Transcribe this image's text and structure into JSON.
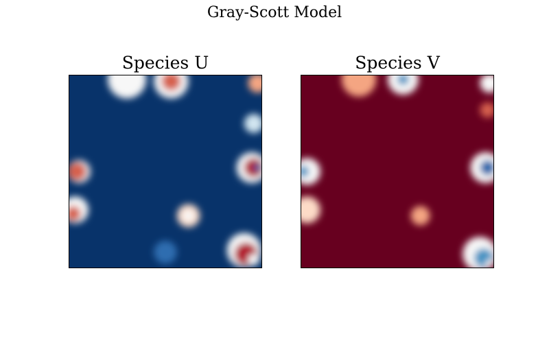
{
  "figure": {
    "title": "Gray-Scott Model"
  },
  "chart_data": [
    {
      "type": "heatmap",
      "title": "Species U",
      "colormap": "RdBu",
      "background_color": "#08336a",
      "axes": {
        "ticks": "none",
        "grid": false
      },
      "features": [
        {
          "x": 0.3,
          "y": 0.02,
          "r": 0.1,
          "color": "#f7f7f7"
        },
        {
          "x": 0.53,
          "y": 0.03,
          "r": 0.09,
          "color": "#f7f7f7"
        },
        {
          "x": 0.53,
          "y": 0.03,
          "r": 0.05,
          "color": "#d6604d"
        },
        {
          "x": 0.98,
          "y": 0.04,
          "r": 0.05,
          "color": "#f4a582"
        },
        {
          "x": 0.96,
          "y": 0.25,
          "r": 0.05,
          "color": "#d1e5f0"
        },
        {
          "x": 0.05,
          "y": 0.5,
          "r": 0.06,
          "color": "#f7f7f7"
        },
        {
          "x": 0.04,
          "y": 0.5,
          "r": 0.05,
          "color": "#d6604d"
        },
        {
          "x": 0.03,
          "y": 0.7,
          "r": 0.07,
          "color": "#f7f7f7"
        },
        {
          "x": 0.02,
          "y": 0.72,
          "r": 0.04,
          "color": "#d6604d"
        },
        {
          "x": 0.95,
          "y": 0.48,
          "r": 0.08,
          "color": "#f7f7f7"
        },
        {
          "x": 0.96,
          "y": 0.48,
          "r": 0.05,
          "color": "#b2182b"
        },
        {
          "x": 0.98,
          "y": 0.48,
          "r": 0.02,
          "color": "#2166ac"
        },
        {
          "x": 0.62,
          "y": 0.73,
          "r": 0.06,
          "color": "#fddbc7"
        },
        {
          "x": 0.62,
          "y": 0.73,
          "r": 0.03,
          "color": "#f7f7f7"
        },
        {
          "x": 0.91,
          "y": 0.91,
          "r": 0.09,
          "color": "#f7f7f7"
        },
        {
          "x": 0.92,
          "y": 0.93,
          "r": 0.06,
          "color": "#b2182b"
        },
        {
          "x": 0.96,
          "y": 0.96,
          "r": 0.03,
          "color": "#f7f7f7"
        },
        {
          "x": 0.5,
          "y": 0.92,
          "r": 0.06,
          "color": "#2f6db0"
        }
      ]
    },
    {
      "type": "heatmap",
      "title": "Species V",
      "colormap": "RdBu",
      "background_color": "#67001f",
      "axes": {
        "ticks": "none",
        "grid": false
      },
      "features": [
        {
          "x": 0.3,
          "y": 0.02,
          "r": 0.09,
          "color": "#f4a582"
        },
        {
          "x": 0.53,
          "y": 0.02,
          "r": 0.08,
          "color": "#f7f7f7"
        },
        {
          "x": 0.53,
          "y": 0.02,
          "r": 0.03,
          "color": "#4393c3"
        },
        {
          "x": 0.98,
          "y": 0.04,
          "r": 0.05,
          "color": "#f7f7f7"
        },
        {
          "x": 0.97,
          "y": 0.18,
          "r": 0.04,
          "color": "#d6604d"
        },
        {
          "x": 0.03,
          "y": 0.5,
          "r": 0.07,
          "color": "#f7f7f7"
        },
        {
          "x": 0.01,
          "y": 0.5,
          "r": 0.03,
          "color": "#4393c3"
        },
        {
          "x": 0.03,
          "y": 0.7,
          "r": 0.07,
          "color": "#fddbc7"
        },
        {
          "x": 0.96,
          "y": 0.48,
          "r": 0.08,
          "color": "#f7f7f7"
        },
        {
          "x": 0.97,
          "y": 0.48,
          "r": 0.04,
          "color": "#2166ac"
        },
        {
          "x": 0.62,
          "y": 0.73,
          "r": 0.05,
          "color": "#f4a582"
        },
        {
          "x": 0.93,
          "y": 0.93,
          "r": 0.09,
          "color": "#f7f7f7"
        },
        {
          "x": 0.95,
          "y": 0.95,
          "r": 0.05,
          "color": "#4393c3"
        },
        {
          "x": 0.98,
          "y": 0.98,
          "r": 0.02,
          "color": "#f7f7f7"
        }
      ]
    }
  ]
}
